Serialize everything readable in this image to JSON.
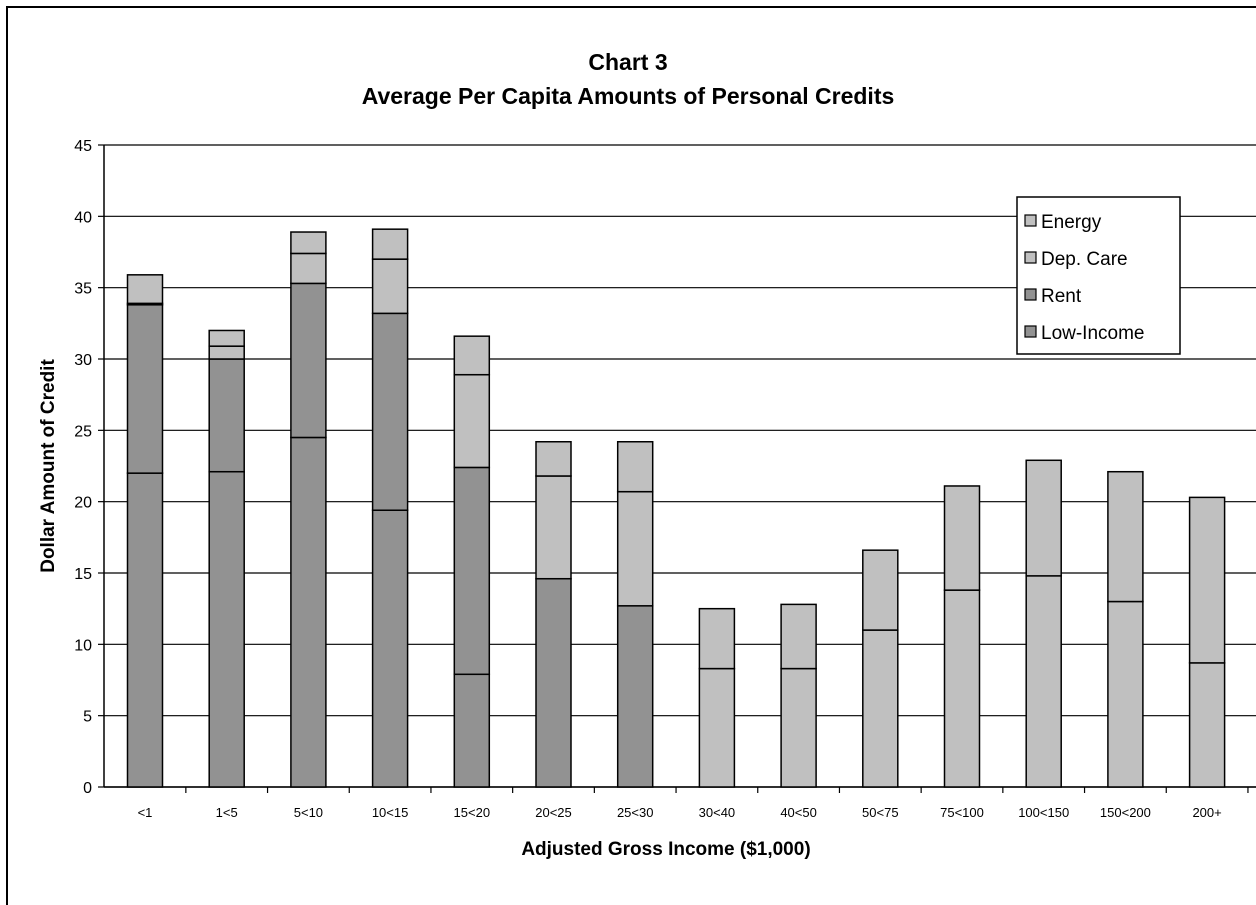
{
  "chart_data": {
    "type": "bar",
    "stacked": true,
    "title": "Chart 3",
    "subtitle": "Average Per Capita Amounts of Personal Credits",
    "xlabel": "Adjusted Gross Income ($1,000)",
    "ylabel": "Dollar Amount of Credit",
    "ylim": [
      0,
      45
    ],
    "yticks": [
      "0",
      "5",
      "10",
      "15",
      "20",
      "25",
      "30",
      "35",
      "40",
      "45"
    ],
    "grid": true,
    "legend_position": "top-right",
    "categories": [
      "<1",
      "1<5",
      "5<10",
      "10<15",
      "15<20",
      "20<25",
      "25<30",
      "30<40",
      "40<50",
      "50<75",
      "75<100",
      "100<150",
      "150<200",
      "200+"
    ],
    "series": [
      {
        "name": "Low-Income",
        "color": "#929292",
        "values": [
          22,
          22.1,
          24.5,
          19.4,
          7.9,
          0,
          0,
          0,
          0,
          0,
          0,
          0,
          0,
          0
        ]
      },
      {
        "name": "Rent",
        "color": "#929292",
        "values": [
          11.8,
          7.9,
          10.8,
          13.8,
          14.5,
          14.6,
          12.7,
          0,
          0,
          0,
          0,
          0,
          0,
          0
        ]
      },
      {
        "name": "Dep. Care",
        "color": "#c0c0c0",
        "values": [
          0.1,
          0.9,
          2.1,
          3.8,
          6.5,
          7.2,
          8.0,
          8.3,
          8.3,
          11.0,
          13.8,
          14.8,
          13.0,
          8.7
        ]
      },
      {
        "name": "Energy",
        "color": "#c0c0c0",
        "values": [
          2,
          1.1,
          1.5,
          2.1,
          2.7,
          2.4,
          3.5,
          4.2,
          4.5,
          5.6,
          7.3,
          8.1,
          9.1,
          11.6
        ]
      }
    ]
  }
}
